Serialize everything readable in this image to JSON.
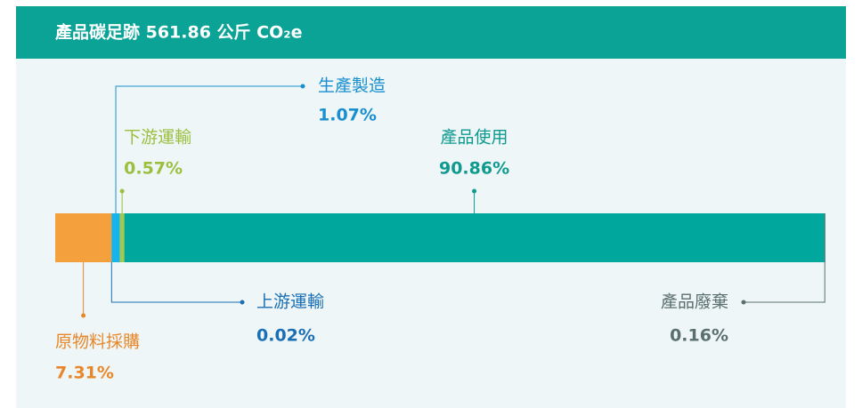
{
  "chart_data": {
    "type": "stacked_bar",
    "title": "產品碳足跡 561.86 公斤 CO₂e",
    "xlim": [
      0,
      100
    ],
    "series": [
      {
        "name": "原物料採購",
        "color": "#f4a03c",
        "values": [
          7.31
        ],
        "value_labels": [
          "7.31%"
        ]
      },
      {
        "name": "上游運輸",
        "color": "#1a6fb5",
        "values": [
          0.02
        ],
        "value_labels": [
          "0.02%"
        ]
      },
      {
        "name": "生產製造",
        "color": "#16b4ea",
        "values": [
          1.07
        ],
        "value_labels": [
          "1.07%"
        ]
      },
      {
        "name": "下游運輸",
        "color": "#a3c94a",
        "values": [
          0.57
        ],
        "value_labels": [
          "0.57%"
        ]
      },
      {
        "name": "產品使用",
        "color": "#00a79d",
        "values": [
          90.86
        ],
        "value_labels": [
          "90.86%"
        ]
      },
      {
        "name": "產品廢棄",
        "color": "#4b7f7c",
        "values": [
          0.16
        ],
        "value_labels": [
          "0.16%"
        ]
      }
    ]
  }
}
